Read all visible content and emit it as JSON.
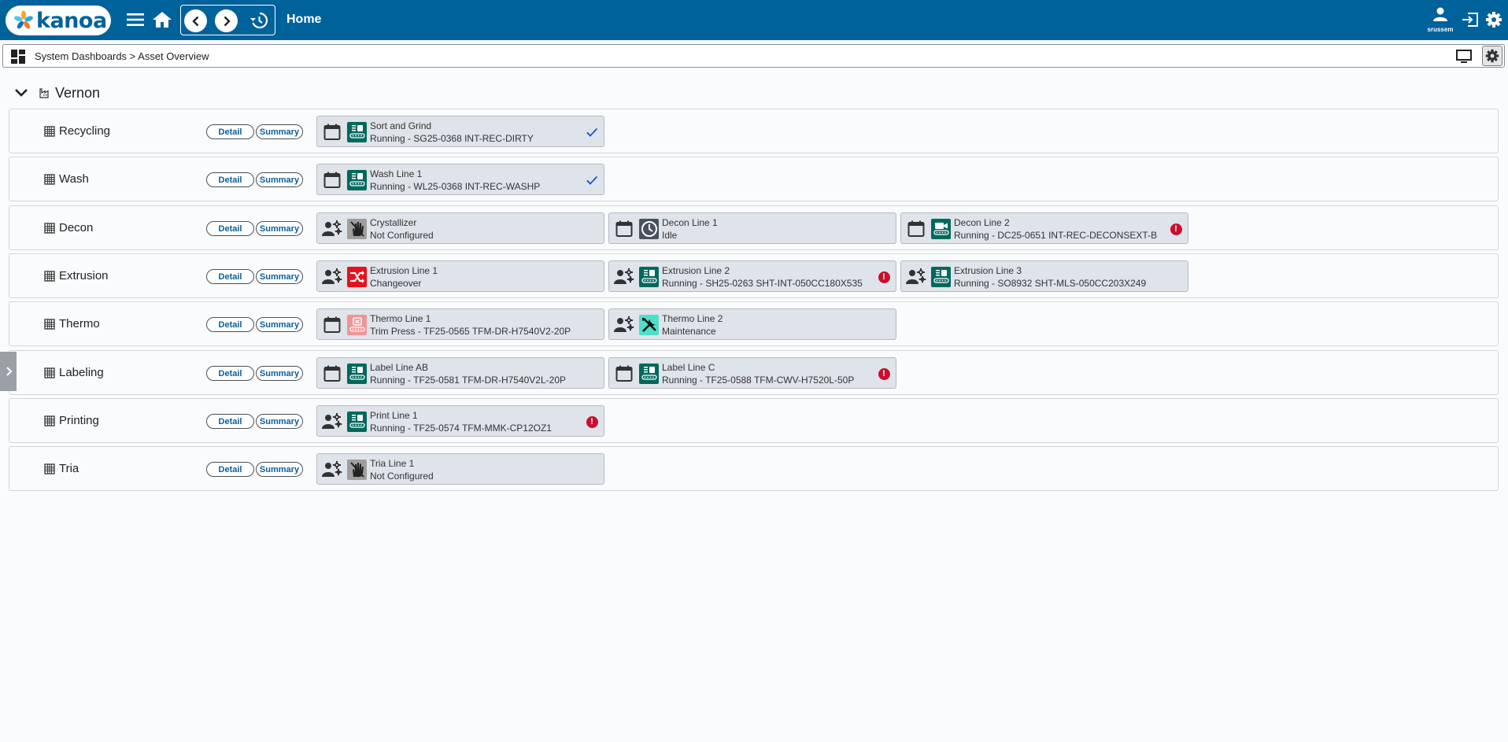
{
  "app": {
    "logo_text": "kanoa",
    "title": "Home",
    "user_name": "srussem"
  },
  "breadcrumb": {
    "text": "System Dashboards > Asset Overview"
  },
  "site": {
    "name": "Vernon"
  },
  "buttons": {
    "detail": "Detail",
    "summary": "Summary"
  },
  "colors": {
    "topbar": "#00629b",
    "running": "#00695c",
    "changeover": "#e8101b",
    "trim_press": "#f29494",
    "maintenance": "#4de0c8",
    "idle": "#4a5260",
    "not_configured": "#9e9e9e",
    "alert": "#c8102e"
  },
  "areas": [
    {
      "name": "Recycling",
      "lines": [
        {
          "name": "Sort and Grind",
          "status": "Running - SG25-0368 INT-REC-DIRTY",
          "lead_icon": "calendar-icon",
          "status_icon": "running-icon",
          "flag": "check-icon"
        }
      ]
    },
    {
      "name": "Wash",
      "lines": [
        {
          "name": "Wash Line 1",
          "status": "Running - WL25-0368 INT-REC-WASHP",
          "lead_icon": "calendar-icon",
          "status_icon": "running-icon",
          "flag": "check-icon"
        }
      ]
    },
    {
      "name": "Decon",
      "lines": [
        {
          "name": "Crystallizer",
          "status": "Not Configured",
          "lead_icon": "operator-icon",
          "status_icon": "not-configured-icon",
          "flag": ""
        },
        {
          "name": "Decon Line 1",
          "status": "Idle",
          "lead_icon": "calendar-icon",
          "status_icon": "idle-icon",
          "flag": ""
        },
        {
          "name": "Decon Line 2",
          "status": "Running - DC25-0651 INT-REC-DECONSEXT-B",
          "lead_icon": "calendar-icon",
          "status_icon": "running-video-icon",
          "flag": "alert-icon"
        }
      ]
    },
    {
      "name": "Extrusion",
      "lines": [
        {
          "name": "Extrusion Line 1",
          "status": "Changeover",
          "lead_icon": "operator-icon",
          "status_icon": "changeover-icon",
          "flag": ""
        },
        {
          "name": "Extrusion Line 2",
          "status": "Running - SH25-0263 SHT-INT-050CC180X535",
          "lead_icon": "operator-icon",
          "status_icon": "running-icon",
          "flag": "alert-icon"
        },
        {
          "name": "Extrusion Line 3",
          "status": "Running - SO8932 SHT-MLS-050CC203X249",
          "lead_icon": "operator-icon",
          "status_icon": "running-icon",
          "flag": ""
        }
      ]
    },
    {
      "name": "Thermo",
      "lines": [
        {
          "name": "Thermo Line 1",
          "status": "Trim Press - TF25-0565 TFM-DR-H7540V2-20P",
          "lead_icon": "calendar-icon",
          "status_icon": "trim-press-icon",
          "flag": ""
        },
        {
          "name": "Thermo Line 2",
          "status": "Maintenance",
          "lead_icon": "operator-icon",
          "status_icon": "maintenance-icon",
          "flag": ""
        }
      ]
    },
    {
      "name": "Labeling",
      "lines": [
        {
          "name": "Label Line AB",
          "status": "Running - TF25-0581 TFM-DR-H7540V2L-20P",
          "lead_icon": "calendar-icon",
          "status_icon": "running-icon",
          "flag": ""
        },
        {
          "name": "Label Line C",
          "status": "Running - TF25-0588 TFM-CWV-H7520L-50P",
          "lead_icon": "calendar-icon",
          "status_icon": "running-icon",
          "flag": "alert-icon"
        }
      ]
    },
    {
      "name": "Printing",
      "lines": [
        {
          "name": "Print Line 1",
          "status": "Running - TF25-0574 TFM-MMK-CP12OZ1",
          "lead_icon": "operator-icon",
          "status_icon": "running-icon",
          "flag": "alert-icon"
        }
      ]
    },
    {
      "name": "Tria",
      "lines": [
        {
          "name": "Tria Line 1",
          "status": "Not Configured",
          "lead_icon": "operator-icon",
          "status_icon": "not-configured-icon",
          "flag": ""
        }
      ]
    }
  ]
}
